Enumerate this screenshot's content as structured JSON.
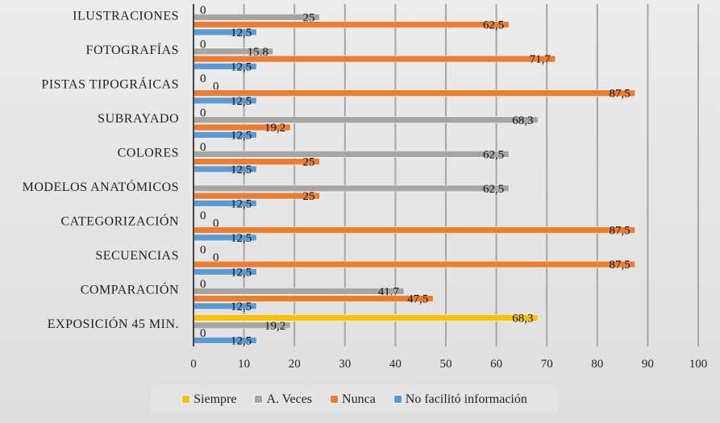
{
  "chart_data": {
    "type": "bar",
    "orientation": "horizontal",
    "categories": [
      "ILUSTRACIONES",
      "FOTOGRAFÍAS",
      "PISTAS TIPOGRÁICAS",
      "SUBRAYADO",
      "COLORES",
      "MODELOS ANATÓMICOS",
      "CATEGORIZACIÓN",
      "SECUENCIAS",
      "COMPARACIÓN",
      "EXPOSICIÓN 45 MIN."
    ],
    "series": [
      {
        "name": "Siempre",
        "color": "#ffc000",
        "values": [
          0,
          0,
          0,
          0,
          0,
          null,
          0,
          0,
          0,
          68.3
        ]
      },
      {
        "name": "A. Veces",
        "color": "#a5a5a5",
        "values": [
          25,
          15.8,
          0,
          68.3,
          62.5,
          62.5,
          0,
          0,
          41.7,
          19.2
        ]
      },
      {
        "name": "Nunca",
        "color": "#ed7d31",
        "values": [
          62.5,
          71.7,
          87.5,
          19.2,
          25,
          25,
          87.5,
          87.5,
          47.5,
          0
        ]
      },
      {
        "name": "No facilitó información",
        "color": "#5b9bd5",
        "values": [
          12.5,
          12.5,
          12.5,
          12.5,
          12.5,
          12.5,
          12.5,
          12.5,
          12.5,
          12.5
        ]
      }
    ],
    "xlim": [
      0,
      100
    ],
    "xticks": [
      "0",
      "10",
      "20",
      "30",
      "40",
      "50",
      "60",
      "70",
      "80",
      "90",
      "100"
    ],
    "grid": true,
    "legend": "bottom",
    "title": "",
    "xlabel": "",
    "ylabel": ""
  }
}
